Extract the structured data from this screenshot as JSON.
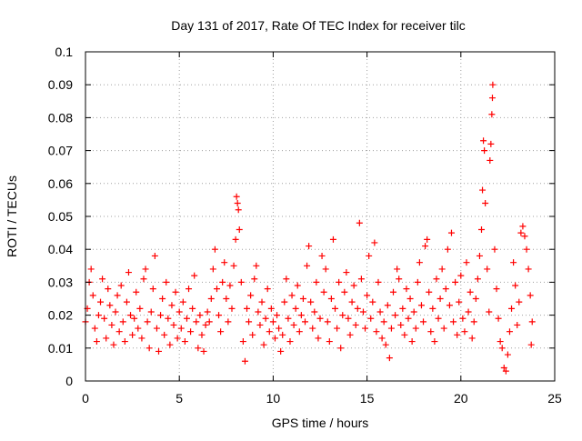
{
  "chart_data": {
    "type": "scatter",
    "title": "Day 131 of 2017, Rate Of TEC Index for receiver tilc",
    "xlabel": "GPS time / hours",
    "ylabel": "ROTI / TECUs",
    "xlim": [
      0,
      25
    ],
    "ylim": [
      0,
      0.1
    ],
    "xticks": [
      0,
      5,
      10,
      15,
      20,
      25
    ],
    "yticks": [
      0,
      0.01,
      0.02,
      0.03,
      0.04,
      0.05,
      0.06,
      0.07,
      0.08,
      0.09,
      0.1
    ],
    "xtick_labels": [
      "0",
      "5",
      "10",
      "15",
      "20",
      "25"
    ],
    "ytick_labels": [
      "0",
      "0.01",
      "0.02",
      "0.03",
      "0.04",
      "0.05",
      "0.06",
      "0.07",
      "0.08",
      "0.09",
      "0.1"
    ],
    "grid": true,
    "marker": "+",
    "color": "#ff0000",
    "series": [
      {
        "points": [
          [
            0.0,
            0.018
          ],
          [
            0.1,
            0.022
          ],
          [
            0.2,
            0.03
          ],
          [
            0.3,
            0.034
          ],
          [
            0.4,
            0.026
          ],
          [
            0.5,
            0.016
          ],
          [
            0.6,
            0.012
          ],
          [
            0.7,
            0.02
          ],
          [
            0.8,
            0.024
          ],
          [
            0.9,
            0.031
          ],
          [
            1.0,
            0.019
          ],
          [
            1.1,
            0.013
          ],
          [
            1.2,
            0.028
          ],
          [
            1.3,
            0.023
          ],
          [
            1.4,
            0.017
          ],
          [
            1.5,
            0.011
          ],
          [
            1.6,
            0.021
          ],
          [
            1.7,
            0.026
          ],
          [
            1.8,
            0.015
          ],
          [
            1.9,
            0.029
          ],
          [
            2.0,
            0.018
          ],
          [
            2.1,
            0.012
          ],
          [
            2.2,
            0.024
          ],
          [
            2.3,
            0.033
          ],
          [
            2.4,
            0.02
          ],
          [
            2.5,
            0.014
          ],
          [
            2.6,
            0.019
          ],
          [
            2.7,
            0.027
          ],
          [
            2.8,
            0.016
          ],
          [
            2.9,
            0.022
          ],
          [
            3.0,
            0.013
          ],
          [
            3.1,
            0.031
          ],
          [
            3.2,
            0.034
          ],
          [
            3.3,
            0.018
          ],
          [
            3.4,
            0.01
          ],
          [
            3.5,
            0.021
          ],
          [
            3.6,
            0.028
          ],
          [
            3.7,
            0.038
          ],
          [
            3.8,
            0.016
          ],
          [
            3.9,
            0.009
          ],
          [
            4.0,
            0.02
          ],
          [
            4.1,
            0.025
          ],
          [
            4.2,
            0.014
          ],
          [
            4.3,
            0.03
          ],
          [
            4.4,
            0.019
          ],
          [
            4.5,
            0.011
          ],
          [
            4.6,
            0.023
          ],
          [
            4.7,
            0.017
          ],
          [
            4.8,
            0.027
          ],
          [
            4.9,
            0.013
          ],
          [
            5.0,
            0.021
          ],
          [
            5.1,
            0.016
          ],
          [
            5.2,
            0.024
          ],
          [
            5.3,
            0.012
          ],
          [
            5.4,
            0.019
          ],
          [
            5.5,
            0.028
          ],
          [
            5.6,
            0.015
          ],
          [
            5.7,
            0.022
          ],
          [
            5.8,
            0.032
          ],
          [
            5.9,
            0.018
          ],
          [
            6.0,
            0.01
          ],
          [
            6.1,
            0.02
          ],
          [
            6.2,
            0.014
          ],
          [
            6.3,
            0.009
          ],
          [
            6.4,
            0.017
          ],
          [
            6.5,
            0.021
          ],
          [
            6.6,
            0.018
          ],
          [
            6.7,
            0.025
          ],
          [
            6.8,
            0.034
          ],
          [
            6.9,
            0.04
          ],
          [
            7.0,
            0.028
          ],
          [
            7.1,
            0.02
          ],
          [
            7.2,
            0.015
          ],
          [
            7.3,
            0.03
          ],
          [
            7.4,
            0.036
          ],
          [
            7.5,
            0.025
          ],
          [
            7.6,
            0.018
          ],
          [
            7.7,
            0.029
          ],
          [
            7.8,
            0.022
          ],
          [
            7.9,
            0.035
          ],
          [
            8.0,
            0.043
          ],
          [
            8.05,
            0.056
          ],
          [
            8.1,
            0.054
          ],
          [
            8.15,
            0.052
          ],
          [
            8.2,
            0.046
          ],
          [
            8.3,
            0.03
          ],
          [
            8.4,
            0.012
          ],
          [
            8.5,
            0.006
          ],
          [
            8.6,
            0.022
          ],
          [
            8.7,
            0.018
          ],
          [
            8.8,
            0.026
          ],
          [
            8.9,
            0.014
          ],
          [
            9.0,
            0.031
          ],
          [
            9.1,
            0.035
          ],
          [
            9.2,
            0.021
          ],
          [
            9.3,
            0.017
          ],
          [
            9.4,
            0.024
          ],
          [
            9.5,
            0.011
          ],
          [
            9.6,
            0.019
          ],
          [
            9.7,
            0.028
          ],
          [
            9.8,
            0.015
          ],
          [
            9.9,
            0.022
          ],
          [
            10.0,
            0.018
          ],
          [
            10.1,
            0.013
          ],
          [
            10.2,
            0.02
          ],
          [
            10.3,
            0.016
          ],
          [
            10.4,
            0.009
          ],
          [
            10.5,
            0.014
          ],
          [
            10.6,
            0.024
          ],
          [
            10.7,
            0.031
          ],
          [
            10.8,
            0.019
          ],
          [
            10.9,
            0.012
          ],
          [
            11.0,
            0.026
          ],
          [
            11.1,
            0.017
          ],
          [
            11.2,
            0.022
          ],
          [
            11.3,
            0.029
          ],
          [
            11.4,
            0.015
          ],
          [
            11.5,
            0.02
          ],
          [
            11.6,
            0.025
          ],
          [
            11.7,
            0.018
          ],
          [
            11.8,
            0.035
          ],
          [
            11.9,
            0.041
          ],
          [
            12.0,
            0.024
          ],
          [
            12.1,
            0.016
          ],
          [
            12.2,
            0.021
          ],
          [
            12.3,
            0.03
          ],
          [
            12.4,
            0.013
          ],
          [
            12.5,
            0.019
          ],
          [
            12.6,
            0.038
          ],
          [
            12.7,
            0.027
          ],
          [
            12.8,
            0.034
          ],
          [
            12.9,
            0.018
          ],
          [
            13.0,
            0.012
          ],
          [
            13.1,
            0.025
          ],
          [
            13.2,
            0.043
          ],
          [
            13.3,
            0.022
          ],
          [
            13.4,
            0.016
          ],
          [
            13.5,
            0.03
          ],
          [
            13.6,
            0.01
          ],
          [
            13.7,
            0.02
          ],
          [
            13.8,
            0.027
          ],
          [
            13.9,
            0.033
          ],
          [
            14.0,
            0.019
          ],
          [
            14.1,
            0.014
          ],
          [
            14.2,
            0.024
          ],
          [
            14.3,
            0.029
          ],
          [
            14.4,
            0.017
          ],
          [
            14.5,
            0.022
          ],
          [
            14.6,
            0.048
          ],
          [
            14.7,
            0.031
          ],
          [
            14.8,
            0.021
          ],
          [
            14.9,
            0.016
          ],
          [
            15.0,
            0.026
          ],
          [
            15.1,
            0.038
          ],
          [
            15.2,
            0.019
          ],
          [
            15.3,
            0.024
          ],
          [
            15.4,
            0.042
          ],
          [
            15.5,
            0.015
          ],
          [
            15.6,
            0.03
          ],
          [
            15.7,
            0.021
          ],
          [
            15.8,
            0.013
          ],
          [
            15.9,
            0.018
          ],
          [
            16.0,
            0.011
          ],
          [
            16.1,
            0.023
          ],
          [
            16.2,
            0.007
          ],
          [
            16.3,
            0.016
          ],
          [
            16.4,
            0.027
          ],
          [
            16.5,
            0.02
          ],
          [
            16.6,
            0.034
          ],
          [
            16.7,
            0.031
          ],
          [
            16.8,
            0.017
          ],
          [
            16.9,
            0.022
          ],
          [
            17.0,
            0.014
          ],
          [
            17.1,
            0.028
          ],
          [
            17.2,
            0.019
          ],
          [
            17.3,
            0.025
          ],
          [
            17.4,
            0.012
          ],
          [
            17.5,
            0.021
          ],
          [
            17.6,
            0.016
          ],
          [
            17.7,
            0.03
          ],
          [
            17.8,
            0.036
          ],
          [
            17.9,
            0.023
          ],
          [
            18.0,
            0.018
          ],
          [
            18.1,
            0.041
          ],
          [
            18.2,
            0.043
          ],
          [
            18.3,
            0.027
          ],
          [
            18.4,
            0.015
          ],
          [
            18.5,
            0.022
          ],
          [
            18.6,
            0.012
          ],
          [
            18.7,
            0.031
          ],
          [
            18.8,
            0.019
          ],
          [
            18.9,
            0.025
          ],
          [
            19.0,
            0.034
          ],
          [
            19.1,
            0.016
          ],
          [
            19.2,
            0.028
          ],
          [
            19.3,
            0.04
          ],
          [
            19.4,
            0.023
          ],
          [
            19.5,
            0.045
          ],
          [
            19.6,
            0.018
          ],
          [
            19.7,
            0.03
          ],
          [
            19.8,
            0.014
          ],
          [
            19.9,
            0.024
          ],
          [
            20.0,
            0.032
          ],
          [
            20.1,
            0.019
          ],
          [
            20.2,
            0.015
          ],
          [
            20.3,
            0.036
          ],
          [
            20.4,
            0.021
          ],
          [
            20.5,
            0.027
          ],
          [
            20.6,
            0.013
          ],
          [
            20.7,
            0.018
          ],
          [
            20.8,
            0.025
          ],
          [
            20.9,
            0.031
          ],
          [
            21.0,
            0.038
          ],
          [
            21.1,
            0.046
          ],
          [
            21.15,
            0.058
          ],
          [
            21.2,
            0.073
          ],
          [
            21.25,
            0.07
          ],
          [
            21.3,
            0.054
          ],
          [
            21.4,
            0.034
          ],
          [
            21.5,
            0.021
          ],
          [
            21.55,
            0.067
          ],
          [
            21.6,
            0.072
          ],
          [
            21.65,
            0.081
          ],
          [
            21.68,
            0.086
          ],
          [
            21.7,
            0.09
          ],
          [
            21.8,
            0.04
          ],
          [
            21.9,
            0.028
          ],
          [
            22.0,
            0.019
          ],
          [
            22.1,
            0.012
          ],
          [
            22.2,
            0.01
          ],
          [
            22.3,
            0.004
          ],
          [
            22.4,
            0.003
          ],
          [
            22.5,
            0.008
          ],
          [
            22.6,
            0.015
          ],
          [
            22.7,
            0.022
          ],
          [
            22.8,
            0.036
          ],
          [
            22.9,
            0.029
          ],
          [
            23.0,
            0.017
          ],
          [
            23.1,
            0.024
          ],
          [
            23.2,
            0.045
          ],
          [
            23.3,
            0.047
          ],
          [
            23.4,
            0.044
          ],
          [
            23.5,
            0.04
          ],
          [
            23.6,
            0.034
          ],
          [
            23.7,
            0.026
          ],
          [
            23.75,
            0.011
          ],
          [
            23.8,
            0.018
          ]
        ]
      }
    ]
  }
}
